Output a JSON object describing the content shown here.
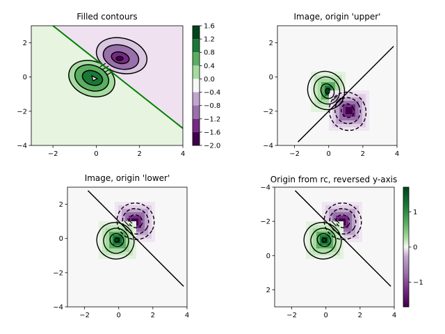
{
  "chart_data": [
    {
      "type": "contour",
      "title": "Filled contours",
      "xlim": [
        -3,
        4
      ],
      "ylim": [
        -4,
        3
      ],
      "x_ticks": [
        -2,
        0,
        2,
        4
      ],
      "y_ticks": [
        -4,
        -2,
        0,
        2
      ],
      "x_tick_labels": [
        "−2",
        "0",
        "2",
        "4"
      ],
      "y_tick_labels": [
        "−4",
        "−2",
        "0",
        "2"
      ],
      "line": {
        "x": [
          -2.0,
          4.0
        ],
        "y": [
          3.0,
          -3.0
        ],
        "color": "#008000"
      },
      "colorbar": {
        "ticks": [
          1.6,
          1.2,
          0.8,
          0.4,
          0.0,
          -0.4,
          -0.8,
          -1.2,
          -1.6,
          -2.0
        ],
        "tick_labels": [
          "1.6",
          "1.2",
          "0.8",
          "0.4",
          "0.0",
          "−0.4",
          "−0.8",
          "−1.2",
          "−1.6",
          "−2.0"
        ]
      }
    },
    {
      "type": "heatmap",
      "title": "Image, origin 'upper'",
      "xlim": [
        -3,
        4
      ],
      "ylim": [
        -4,
        3
      ],
      "x_ticks": [
        -2,
        0,
        2,
        4
      ],
      "y_ticks": [
        -4,
        -2,
        0,
        2
      ],
      "x_tick_labels": [
        "−2",
        "0",
        "2",
        "4"
      ],
      "y_tick_labels": [
        "−4",
        "−2",
        "0",
        "2"
      ],
      "line": {
        "x": [
          -1.8,
          3.8
        ],
        "y": [
          -3.8,
          1.8
        ],
        "color": "#000000"
      }
    },
    {
      "type": "heatmap",
      "title": "Image, origin 'lower'",
      "xlim": [
        -3,
        4
      ],
      "ylim": [
        -4,
        3
      ],
      "x_ticks": [
        -2,
        0,
        2,
        4
      ],
      "y_ticks": [
        -4,
        -2,
        0,
        2
      ],
      "x_tick_labels": [
        "−2",
        "0",
        "2",
        "4"
      ],
      "y_tick_labels": [
        "−4",
        "−2",
        "0",
        "2"
      ],
      "line": {
        "x": [
          -1.8,
          3.8
        ],
        "y": [
          2.8,
          -2.8
        ],
        "color": "#000000"
      }
    },
    {
      "type": "heatmap",
      "title": "Origin from rc, reversed y-axis",
      "xlim": [
        -3,
        4
      ],
      "ylim": [
        3,
        -4
      ],
      "x_ticks": [
        -2,
        0,
        2,
        4
      ],
      "y_ticks": [
        -4,
        -2,
        0,
        2
      ],
      "x_tick_labels": [
        "−2",
        "0",
        "2",
        "4"
      ],
      "y_tick_labels": [
        "−4",
        "−2",
        "0",
        "2"
      ],
      "line": {
        "x": [
          -1.8,
          3.8
        ],
        "y": [
          -3.8,
          1.8
        ],
        "color": "#000000"
      },
      "colorbar": {
        "ticks": [
          1,
          0,
          -1
        ],
        "tick_labels": [
          "1",
          "0",
          "−1"
        ]
      }
    }
  ]
}
